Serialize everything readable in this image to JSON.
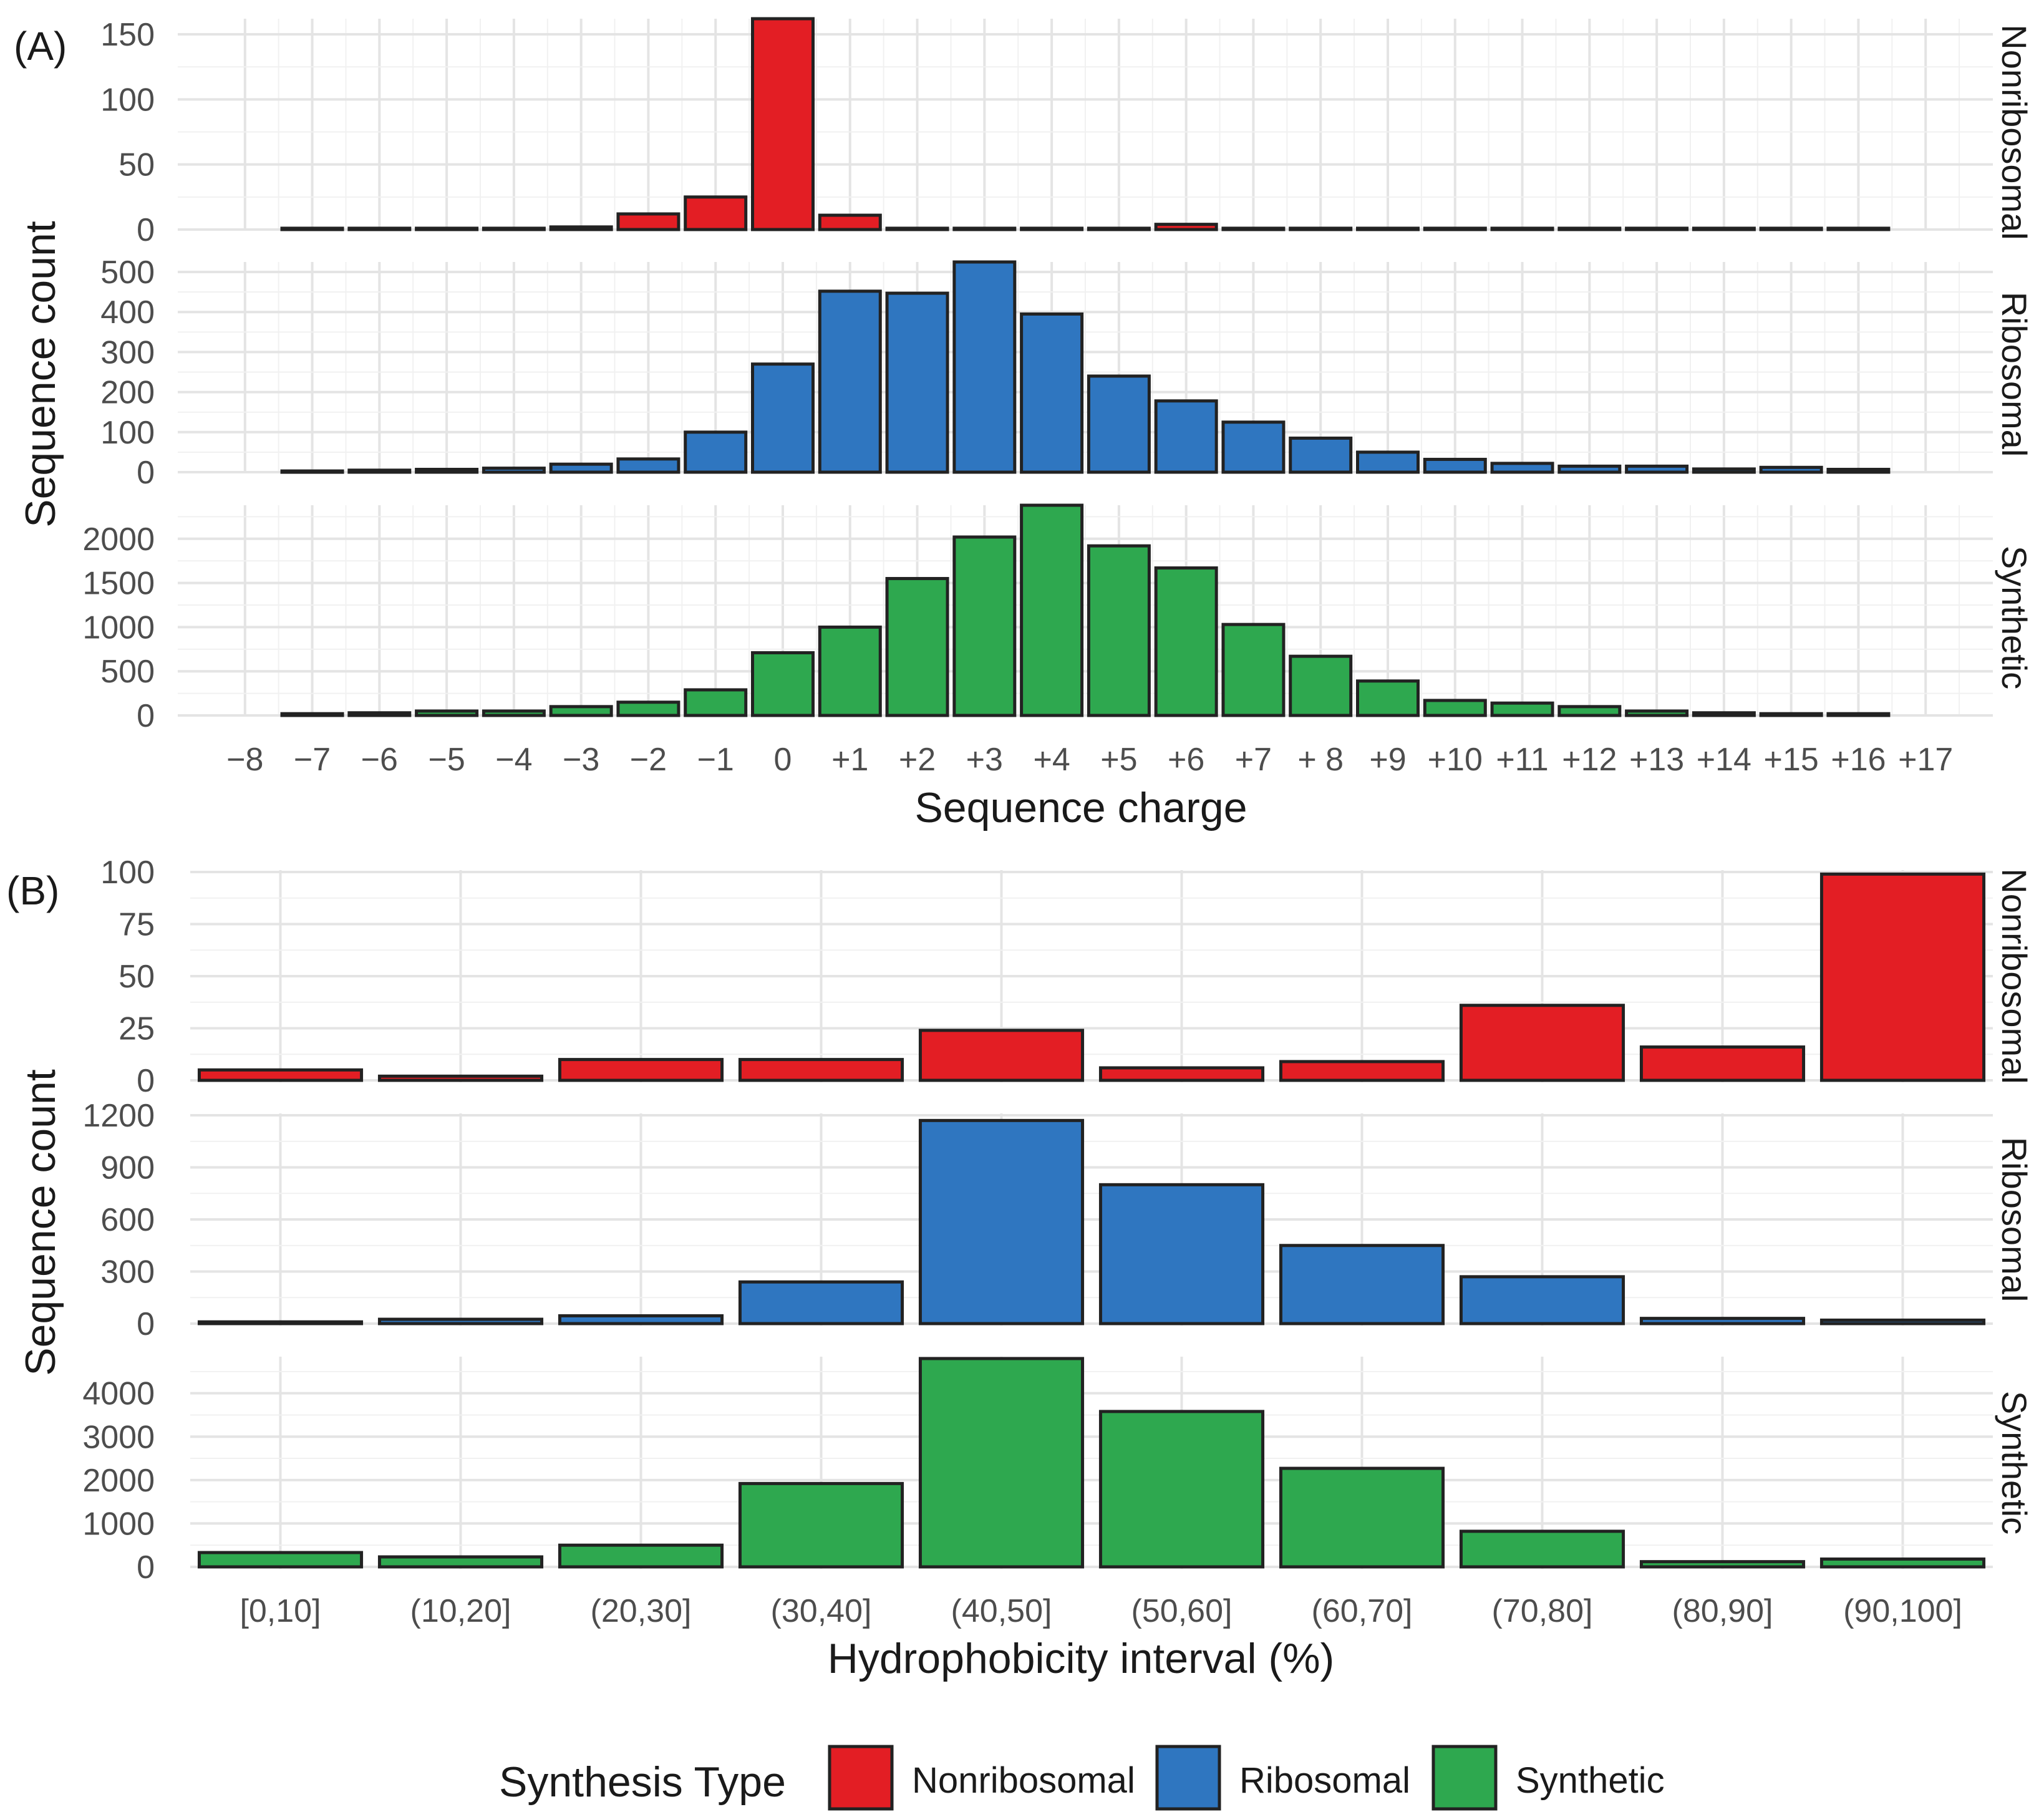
{
  "colors": {
    "Nonribosomal": "#e31e24",
    "Ribosomal": "#2f76c0",
    "Synthetic": "#2ea84f"
  },
  "chart_data": [
    {
      "panel_label": "(A)",
      "type": "bar",
      "title": "",
      "xlabel": "Sequence charge",
      "ylabel": "Sequence count",
      "tick_labels": [
        "−8",
        "−7",
        "−6",
        "−5",
        "−4",
        "−3",
        "−2",
        "−1",
        "0",
        "+1",
        "+2",
        "+3",
        "+4",
        "+5",
        "+6",
        "+7",
        "+ 8",
        "+9",
        "+10",
        "+11",
        "+12",
        "+13",
        "+14",
        "+15",
        "+16",
        "+17"
      ],
      "categories": [
        -7,
        -6,
        -5,
        -4,
        -3,
        -2,
        -1,
        0,
        1,
        2,
        3,
        4,
        5,
        6,
        7,
        8,
        9,
        10,
        11,
        12,
        13,
        14,
        15,
        16
      ],
      "series": [
        {
          "name": "Nonribosomal",
          "values": [
            1,
            1,
            1,
            1,
            2,
            12,
            25,
            162,
            11,
            1,
            1,
            1,
            1,
            4,
            1,
            1,
            1,
            1,
            1,
            1,
            1,
            1,
            1,
            1
          ],
          "ylim": [
            0,
            162
          ],
          "yticks": [
            0,
            50,
            100,
            150
          ]
        },
        {
          "name": "Ribosomal",
          "values": [
            3,
            5,
            7,
            10,
            20,
            33,
            100,
            270,
            452,
            447,
            525,
            395,
            240,
            178,
            125,
            85,
            50,
            32,
            22,
            15,
            15,
            8,
            12,
            7
          ],
          "ylim": [
            0,
            525
          ],
          "yticks": [
            0,
            100,
            200,
            300,
            400,
            500
          ]
        },
        {
          "name": "Synthetic",
          "values": [
            20,
            30,
            50,
            50,
            100,
            150,
            290,
            710,
            1000,
            1550,
            2020,
            2380,
            1920,
            1670,
            1030,
            670,
            390,
            170,
            140,
            100,
            50,
            30,
            20,
            20
          ],
          "ylim": [
            0,
            2380
          ],
          "yticks": [
            0,
            500,
            1000,
            1500,
            2000
          ]
        }
      ]
    },
    {
      "panel_label": "(B)",
      "type": "bar",
      "title": "",
      "xlabel": "Hydrophobicity interval (%)",
      "ylabel": "Sequence count",
      "categories": [
        "[0,10]",
        "(10,20]",
        "(20,30]",
        "(30,40]",
        "(40,50]",
        "(50,60]",
        "(60,70]",
        "(70,80]",
        "(80,90]",
        "(90,100]"
      ],
      "series": [
        {
          "name": "Nonribosomal",
          "values": [
            5,
            2,
            10,
            10,
            24,
            6,
            9,
            36,
            16,
            99
          ],
          "ylim": [
            0,
            99
          ],
          "yticks": [
            0,
            25,
            50,
            75,
            100
          ]
        },
        {
          "name": "Ribosomal",
          "values": [
            10,
            25,
            45,
            240,
            1170,
            800,
            450,
            270,
            30,
            20
          ],
          "ylim": [
            0,
            1170
          ],
          "yticks": [
            0,
            300,
            600,
            900,
            1200
          ]
        },
        {
          "name": "Synthetic",
          "values": [
            330,
            230,
            500,
            1920,
            4800,
            3580,
            2270,
            820,
            120,
            180
          ],
          "ylim": [
            0,
            4800
          ],
          "yticks": [
            0,
            1000,
            2000,
            3000,
            4000
          ]
        }
      ]
    }
  ],
  "legend": {
    "title": "Synthesis Type",
    "items": [
      "Nonribosomal",
      "Ribosomal",
      "Synthetic"
    ]
  }
}
